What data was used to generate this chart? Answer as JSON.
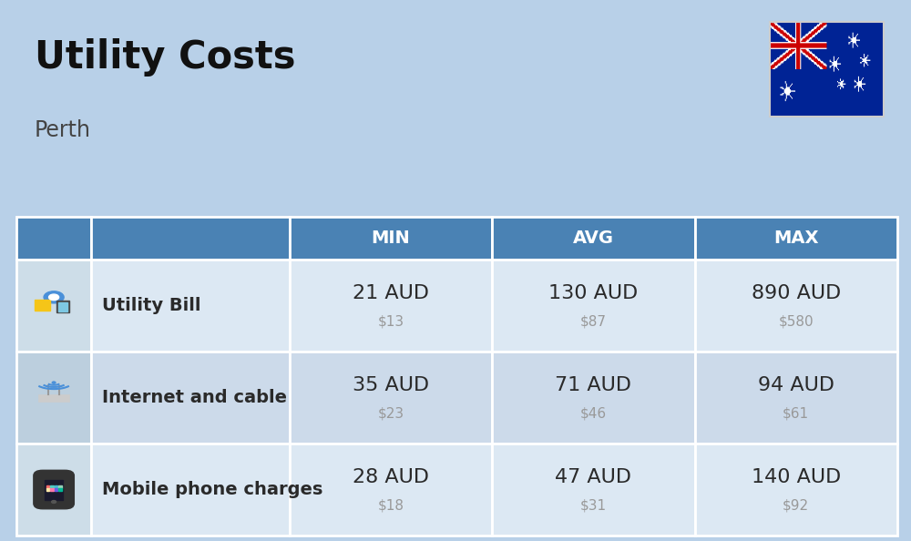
{
  "title": "Utility Costs",
  "subtitle": "Perth",
  "background_color": "#b8d0e8",
  "header_bg_color": "#4a82b4",
  "header_text_color": "#ffffff",
  "row_bg_color_odd": "#dce8f3",
  "row_bg_color_even": "#ccdaea",
  "icon_col_bg_odd": "#cddde8",
  "icon_col_bg_even": "#bccfde",
  "col_headers": [
    "MIN",
    "AVG",
    "MAX"
  ],
  "rows": [
    {
      "label": "Utility Bill",
      "min_aud": "21 AUD",
      "min_usd": "$13",
      "avg_aud": "130 AUD",
      "avg_usd": "$87",
      "max_aud": "890 AUD",
      "max_usd": "$580"
    },
    {
      "label": "Internet and cable",
      "min_aud": "35 AUD",
      "min_usd": "$23",
      "avg_aud": "71 AUD",
      "avg_usd": "$46",
      "max_aud": "94 AUD",
      "max_usd": "$61"
    },
    {
      "label": "Mobile phone charges",
      "min_aud": "28 AUD",
      "min_usd": "$18",
      "avg_aud": "47 AUD",
      "avg_usd": "$31",
      "max_aud": "140 AUD",
      "max_usd": "$92"
    }
  ],
  "title_fontsize": 30,
  "subtitle_fontsize": 17,
  "header_fontsize": 14,
  "label_fontsize": 14,
  "value_fontsize": 16,
  "subvalue_fontsize": 11,
  "text_color_dark": "#2a2a2a",
  "text_color_gray": "#999999"
}
